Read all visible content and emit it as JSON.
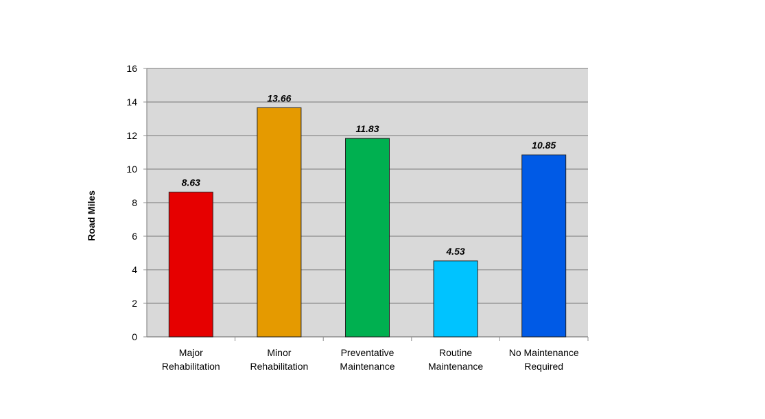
{
  "chart_data": {
    "type": "bar",
    "y_label": "Road Miles",
    "categories": [
      "Major\nRehabilitation",
      "Minor\nRehabilitation",
      "Preventative\nMaintenance",
      "Routine\nMaintenance",
      "No Maintenance\nRequired"
    ],
    "values": [
      8.63,
      13.66,
      11.83,
      4.53,
      10.85
    ],
    "colors": [
      "#e60000",
      "#e59a00",
      "#00b050",
      "#00c3ff",
      "#005ae6"
    ],
    "ylim": [
      0,
      16
    ],
    "yticks": [
      0,
      2,
      4,
      6,
      8,
      10,
      12,
      14,
      16
    ],
    "grid": true
  }
}
